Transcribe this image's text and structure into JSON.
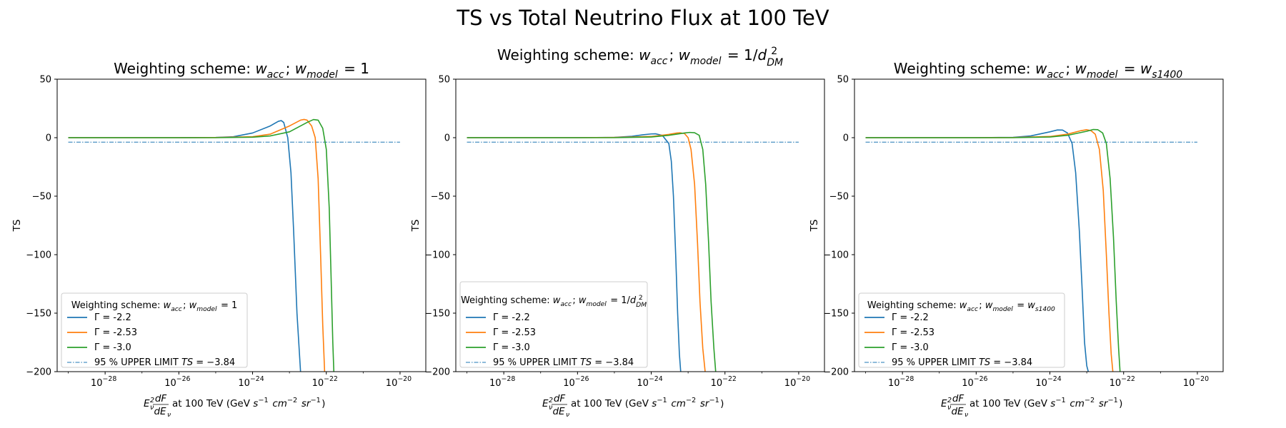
{
  "figure": {
    "title": "TS vs Total Neutrino Flux at 100 TeV"
  },
  "colors": {
    "series": [
      "#1f77b4",
      "#ff7f0e",
      "#2ca02c"
    ],
    "limit": "#1f77b4"
  },
  "chart_data": [
    {
      "type": "line",
      "title_prefix": "Weighting scheme: ",
      "title_weights": "w_acc; w_model = 1",
      "xlabel_suffix": " at 100 TeV (GeV s^-1 cm^-2 sr^-1)",
      "ylabel": "TS",
      "xscale": "log",
      "xlim": [
        5e-30,
        5e-20
      ],
      "ylim": [
        -200,
        50
      ],
      "xticks": [
        1e-28,
        1e-26,
        1e-24,
        1e-22,
        1e-20
      ],
      "xtick_labels": [
        "10^-28",
        "10^-26",
        "10^-24",
        "10^-22",
        "10^-20"
      ],
      "yticks": [
        50,
        0,
        -50,
        -100,
        -150,
        -200
      ],
      "ytick_labels": [
        "50",
        "0",
        "−50",
        "−100",
        "−150",
        "−200"
      ],
      "grid": false,
      "legend_position": "lower-left",
      "legend_title": "Weighting scheme: w_acc; w_model = 1",
      "series": [
        {
          "name": "Γ = -2.2",
          "x": [
            1e-29,
            1e-27,
            1e-26,
            1e-25,
            3e-25,
            1e-24,
            3e-24,
            5e-24,
            6e-24,
            7e-24,
            9e-24,
            1.1e-23,
            1.3e-23,
            1.6e-23,
            2e-23
          ],
          "y": [
            0,
            0,
            0,
            0.2,
            0.8,
            4,
            10,
            14,
            14.6,
            13,
            0,
            -30,
            -80,
            -150,
            -200
          ]
        },
        {
          "name": "Γ = -2.53",
          "x": [
            1e-29,
            1e-26,
            1e-25,
            1e-24,
            3e-24,
            1e-23,
            2e-23,
            2.5e-23,
            3e-23,
            4e-23,
            5e-23,
            6e-23,
            7e-23,
            8e-23,
            9e-23
          ],
          "y": [
            0,
            0,
            0.1,
            0.8,
            3,
            10,
            15,
            15.6,
            15,
            10,
            0,
            -35,
            -100,
            -160,
            -200
          ]
        },
        {
          "name": "Γ = -3.0",
          "x": [
            1e-29,
            1e-26,
            1e-25,
            1e-24,
            3e-24,
            1e-23,
            3e-23,
            4.5e-23,
            6e-23,
            8e-23,
            1e-22,
            1.2e-22,
            1.35e-22,
            1.5e-22,
            1.6e-22
          ],
          "y": [
            0,
            0,
            0,
            0.4,
            1.5,
            5,
            13,
            15.5,
            15,
            8,
            -10,
            -60,
            -120,
            -175,
            -200
          ]
        }
      ],
      "limit": {
        "name": "95 % UPPER LIMIT TS = −3.84",
        "y": -3.84,
        "xrange": [
          1e-29,
          1e-20
        ]
      }
    },
    {
      "type": "line",
      "title_prefix": "Weighting scheme: ",
      "title_weights": "w_acc; w_model = 1/d_DM^2",
      "xlabel_suffix": " at 100 TeV (GeV s^-1 cm^-2 sr^-1)",
      "ylabel": "TS",
      "xscale": "log",
      "xlim": [
        5e-30,
        5e-20
      ],
      "ylim": [
        -200,
        50
      ],
      "xticks": [
        1e-28,
        1e-26,
        1e-24,
        1e-22,
        1e-20
      ],
      "xtick_labels": [
        "10^-28",
        "10^-26",
        "10^-24",
        "10^-22",
        "10^-20"
      ],
      "yticks": [
        50,
        0,
        -50,
        -100,
        -150,
        -200
      ],
      "ytick_labels": [
        "50",
        "0",
        "−50",
        "−100",
        "−150",
        "−200"
      ],
      "grid": false,
      "legend_position": "lower-left",
      "legend_title": "Weighting scheme: w_acc; w_model = 1/d_DM^2",
      "series": [
        {
          "name": "Γ = -2.2",
          "x": [
            1e-29,
            1e-26,
            1e-25,
            3e-25,
            6e-25,
            1e-24,
            1.3e-24,
            2e-24,
            3e-24,
            3.5e-24,
            4e-24,
            4.6e-24,
            5.2e-24,
            5.8e-24,
            6.3e-24
          ],
          "y": [
            0,
            0,
            0.3,
            1.2,
            2.5,
            3.2,
            3.3,
            2,
            -5,
            -20,
            -50,
            -100,
            -150,
            -185,
            -200
          ]
        },
        {
          "name": "Γ = -2.53",
          "x": [
            1e-29,
            1e-26,
            1e-25,
            1e-24,
            3e-24,
            5e-24,
            6e-24,
            8e-24,
            1e-23,
            1.2e-23,
            1.5e-23,
            1.8e-23,
            2.1e-23,
            2.5e-23,
            2.9e-23
          ],
          "y": [
            0,
            0,
            0.2,
            1,
            2.8,
            4,
            4.2,
            3.5,
            0,
            -10,
            -40,
            -90,
            -140,
            -180,
            -200
          ]
        },
        {
          "name": "Γ = -3.0",
          "x": [
            1e-29,
            1e-26,
            1e-25,
            1e-24,
            3e-24,
            8e-24,
            1.1e-23,
            1.5e-23,
            2e-23,
            2.5e-23,
            3e-23,
            3.6e-23,
            4.2e-23,
            5e-23,
            5.6e-23
          ],
          "y": [
            0,
            0,
            0,
            0.6,
            2,
            4,
            4.5,
            4.2,
            2,
            -10,
            -40,
            -90,
            -140,
            -180,
            -200
          ]
        }
      ],
      "limit": {
        "name": "95 % UPPER LIMIT TS = −3.84",
        "y": -3.84,
        "xrange": [
          1e-29,
          1e-20
        ]
      }
    },
    {
      "type": "line",
      "title_prefix": "Weighting scheme: ",
      "title_weights": "w_acc; w_model = w_s1400",
      "xlabel_suffix": " at 100 TeV (GeV s^-1 cm^-2 sr^-1)",
      "ylabel": "TS",
      "xscale": "log",
      "xlim": [
        5e-30,
        5e-20
      ],
      "ylim": [
        -200,
        50
      ],
      "xticks": [
        1e-28,
        1e-26,
        1e-24,
        1e-22,
        1e-20
      ],
      "xtick_labels": [
        "10^-28",
        "10^-26",
        "10^-24",
        "10^-22",
        "10^-20"
      ],
      "yticks": [
        50,
        0,
        -50,
        -100,
        -150,
        -200
      ],
      "ytick_labels": [
        "50",
        "0",
        "−50",
        "−100",
        "−150",
        "−200"
      ],
      "grid": false,
      "legend_position": "lower-left",
      "legend_title": "Weighting scheme: w_acc; w_model = w_s1400",
      "series": [
        {
          "name": "Γ = -2.2",
          "x": [
            1e-29,
            1e-26,
            1e-25,
            3e-25,
            1e-24,
            1.6e-24,
            2.2e-24,
            3e-24,
            4e-24,
            5e-24,
            6.3e-24,
            7.5e-24,
            8.7e-24,
            1e-23,
            1.1e-23
          ],
          "y": [
            0,
            0,
            0.3,
            1.5,
            5,
            6.6,
            6.5,
            4,
            -5,
            -30,
            -80,
            -130,
            -175,
            -195,
            -200
          ]
        },
        {
          "name": "Γ = -2.53",
          "x": [
            1e-29,
            1e-26,
            1e-25,
            1e-24,
            3e-24,
            7e-24,
            1e-23,
            1.3e-23,
            1.7e-23,
            2.2e-23,
            2.8e-23,
            3.4e-23,
            4e-23,
            4.6e-23,
            5.1e-23
          ],
          "y": [
            0,
            0,
            0.1,
            1,
            3,
            6,
            6.8,
            6,
            3,
            -10,
            -45,
            -100,
            -150,
            -185,
            -200
          ]
        },
        {
          "name": "Γ = -3.0",
          "x": [
            1e-29,
            1e-26,
            1e-25,
            1e-24,
            3e-24,
            1e-23,
            1.5e-23,
            2e-23,
            2.7e-23,
            3.4e-23,
            4.3e-23,
            5.3e-23,
            6.3e-23,
            7.3e-23,
            8e-23
          ],
          "y": [
            0,
            0,
            0,
            0.6,
            2,
            5.5,
            7,
            6.8,
            4,
            -5,
            -35,
            -85,
            -140,
            -180,
            -200
          ]
        }
      ],
      "limit": {
        "name": "95 % UPPER LIMIT TS = −3.84",
        "y": -3.84,
        "xrange": [
          1e-29,
          1e-20
        ]
      }
    }
  ]
}
